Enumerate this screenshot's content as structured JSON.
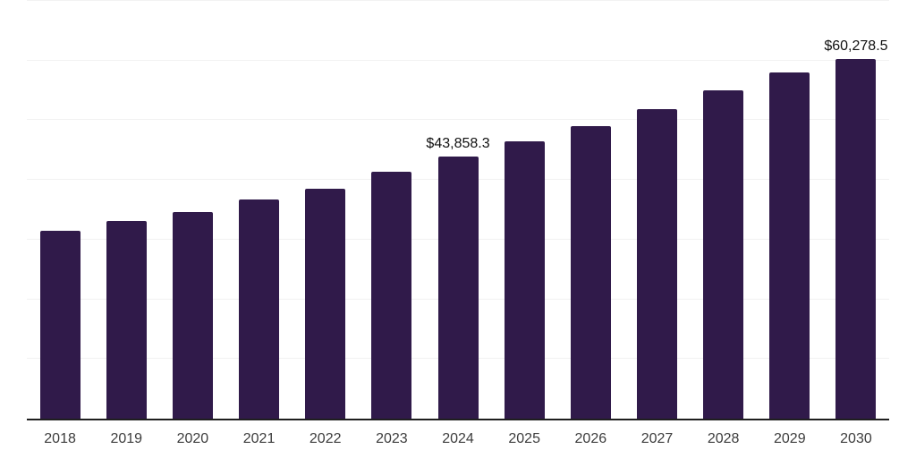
{
  "chart": {
    "background": "#ffffff",
    "bar_color": "#301a4a",
    "gridline_color": "#f2f2f2",
    "axis_line_color": "#1f1f1f",
    "tick_label_color": "#3c3c3c",
    "data_label_color": "#111111"
  },
  "chart_data": {
    "type": "bar",
    "title": "",
    "xlabel": "",
    "ylabel": "",
    "categories": [
      "2018",
      "2019",
      "2020",
      "2021",
      "2022",
      "2023",
      "2024",
      "2025",
      "2026",
      "2027",
      "2028",
      "2029",
      "2030"
    ],
    "values": [
      31500,
      33150,
      34650,
      36750,
      38550,
      41400,
      43858.3,
      46450,
      49000,
      51850,
      55000,
      57950,
      60278.5
    ],
    "data_labels": {
      "2024": "$43,858.3",
      "2030": "$60,278.5"
    },
    "ylim": [
      0,
      70000
    ],
    "ytick_interval": 10000,
    "y_axis_labels_visible": false,
    "grid": "horizontal",
    "legend": "none"
  }
}
